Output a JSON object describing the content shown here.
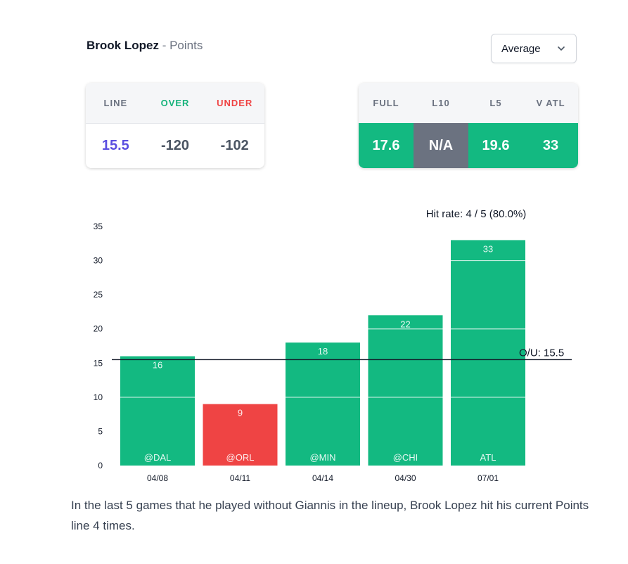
{
  "header": {
    "player": "Brook Lopez",
    "separator": "-",
    "stat": "Points",
    "dropdown_value": "Average"
  },
  "odds": {
    "headers": [
      "LINE",
      "OVER",
      "UNDER"
    ],
    "values": [
      "15.5",
      "-120",
      "-102"
    ]
  },
  "splits": {
    "headers": [
      "FULL",
      "L10",
      "L5",
      "V ATL"
    ],
    "values": [
      "17.6",
      "N/A",
      "19.6",
      "33"
    ],
    "status": [
      "hit",
      "na",
      "hit",
      "hit"
    ]
  },
  "colors": {
    "hit": "#13b981",
    "miss": "#ef4444",
    "na": "#6b7280",
    "line_color": "#5b4fe0"
  },
  "chart_data": {
    "type": "bar",
    "title": "Hit rate: 4 / 5 (80.0%)",
    "categories": [
      "04/08",
      "04/11",
      "04/14",
      "04/30",
      "07/01"
    ],
    "opponents": [
      "@DAL",
      "@ORL",
      "@MIN",
      "@CHI",
      "ATL"
    ],
    "values": [
      16,
      9,
      18,
      22,
      33
    ],
    "hit": [
      true,
      false,
      true,
      true,
      true
    ],
    "ou_line": 15.5,
    "ou_label": "O/U: 15.5",
    "yticks": [
      0,
      5,
      10,
      15,
      20,
      25,
      30,
      35
    ],
    "ylim": [
      0,
      35
    ],
    "xlabel": "",
    "ylabel": ""
  },
  "caption": "In the last 5 games that he played without Giannis in the lineup, Brook Lopez hit his current Points line 4 times."
}
